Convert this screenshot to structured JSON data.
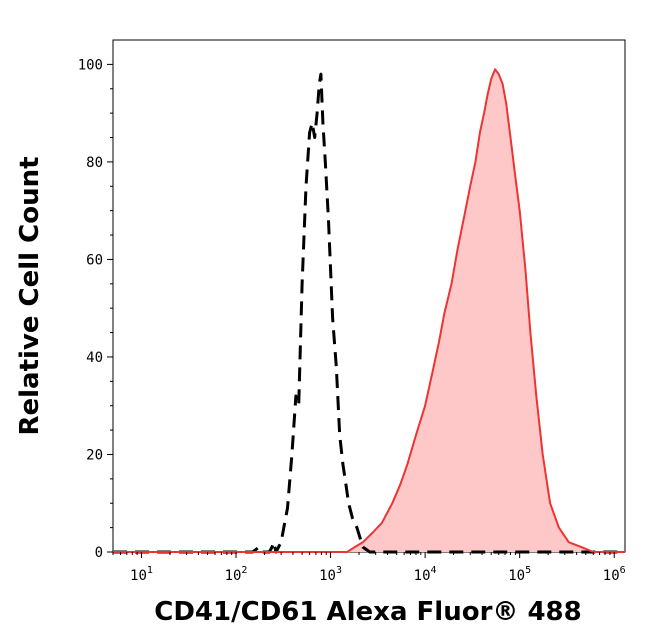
{
  "chart_data": {
    "type": "area",
    "xlabel": "CD41/CD61 Alexa Fluor® 488",
    "ylabel": "Relative Cell Count",
    "xscale": "log",
    "xlim": [
      5,
      1300000
    ],
    "ylim": [
      0,
      105
    ],
    "grid": false,
    "legend": "none",
    "x_ticks": [
      {
        "base": "10",
        "exp": "1",
        "value": 10
      },
      {
        "base": "10",
        "exp": "2",
        "value": 100
      },
      {
        "base": "10",
        "exp": "3",
        "value": 1000
      },
      {
        "base": "10",
        "exp": "4",
        "value": 10000
      },
      {
        "base": "10",
        "exp": "5",
        "value": 100000
      },
      {
        "base": "10",
        "exp": "6",
        "value": 1000000
      }
    ],
    "y_ticks": [
      "0",
      "20",
      "40",
      "60",
      "80",
      "100"
    ],
    "series": [
      {
        "style": "dashed",
        "color": "#000000",
        "fill": "none",
        "points": [
          [
            5,
            0
          ],
          [
            150,
            0
          ],
          [
            175,
            1
          ],
          [
            190,
            0
          ],
          [
            225,
            0
          ],
          [
            240,
            1
          ],
          [
            250,
            2
          ],
          [
            265,
            0
          ],
          [
            300,
            2
          ],
          [
            320,
            5
          ],
          [
            350,
            9
          ],
          [
            390,
            20
          ],
          [
            430,
            32
          ],
          [
            460,
            30
          ],
          [
            500,
            55
          ],
          [
            550,
            75
          ],
          [
            600,
            86
          ],
          [
            640,
            88
          ],
          [
            680,
            85
          ],
          [
            720,
            90
          ],
          [
            760,
            96
          ],
          [
            790,
            98
          ],
          [
            830,
            88
          ],
          [
            880,
            80
          ],
          [
            950,
            68
          ],
          [
            1050,
            48
          ],
          [
            1150,
            38
          ],
          [
            1250,
            24
          ],
          [
            1350,
            18
          ],
          [
            1450,
            14
          ],
          [
            1550,
            10
          ],
          [
            1700,
            7
          ],
          [
            1900,
            5
          ],
          [
            2200,
            1
          ],
          [
            2600,
            0
          ],
          [
            1300000,
            0
          ]
        ]
      },
      {
        "style": "solid",
        "color": "#ee3333",
        "fill": "#ffc8c8",
        "points": [
          [
            5,
            0
          ],
          [
            1500,
            0
          ],
          [
            1800,
            1
          ],
          [
            2200,
            2
          ],
          [
            2800,
            4
          ],
          [
            3500,
            6
          ],
          [
            4500,
            10
          ],
          [
            5500,
            14
          ],
          [
            6500,
            18
          ],
          [
            8000,
            24
          ],
          [
            10000,
            30
          ],
          [
            12000,
            37
          ],
          [
            14000,
            43
          ],
          [
            16000,
            49
          ],
          [
            19000,
            55
          ],
          [
            22000,
            62
          ],
          [
            26000,
            69
          ],
          [
            30000,
            75
          ],
          [
            34000,
            80
          ],
          [
            38000,
            86
          ],
          [
            42000,
            90
          ],
          [
            46000,
            94
          ],
          [
            50000,
            97
          ],
          [
            55000,
            99
          ],
          [
            60000,
            98
          ],
          [
            66000,
            96
          ],
          [
            72000,
            92
          ],
          [
            80000,
            85
          ],
          [
            90000,
            77
          ],
          [
            100000,
            70
          ],
          [
            115000,
            58
          ],
          [
            130000,
            45
          ],
          [
            150000,
            32
          ],
          [
            175000,
            20
          ],
          [
            210000,
            10
          ],
          [
            260000,
            5
          ],
          [
            330000,
            2
          ],
          [
            450000,
            1
          ],
          [
            600000,
            0
          ],
          [
            1300000,
            0
          ]
        ]
      }
    ]
  }
}
